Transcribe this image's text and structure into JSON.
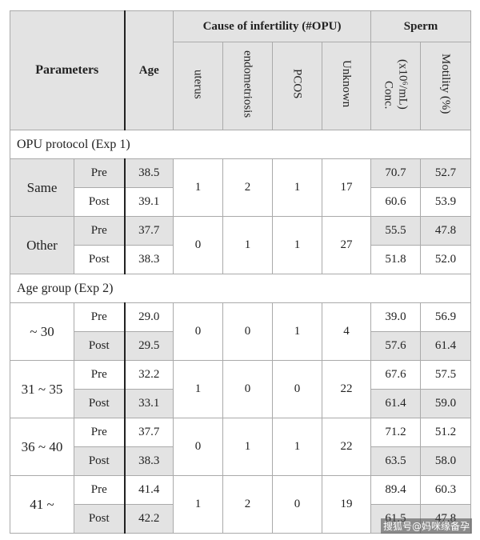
{
  "header": {
    "parameters": "Parameters",
    "age": "Age",
    "cause_group": "Cause of infertility (#OPU)",
    "sperm_group": "Sperm",
    "causes": [
      "uterus",
      "endometriosis",
      "PCOS",
      "Unknown"
    ],
    "conc": [
      "Conc.",
      "(x10⁶/mL)"
    ],
    "motility": "Motility (%)"
  },
  "sections": [
    {
      "title": "OPU protocol (Exp 1)",
      "groups": [
        {
          "label": "Same",
          "causes": [
            "1",
            "2",
            "1",
            "17"
          ],
          "rows": [
            {
              "phase": "Pre",
              "age": "38.5",
              "conc": "70.7",
              "motility": "52.7"
            },
            {
              "phase": "Post",
              "age": "39.1",
              "conc": "60.6",
              "motility": "53.9"
            }
          ]
        },
        {
          "label": "Other",
          "causes": [
            "0",
            "1",
            "1",
            "27"
          ],
          "rows": [
            {
              "phase": "Pre",
              "age": "37.7",
              "conc": "55.5",
              "motility": "47.8"
            },
            {
              "phase": "Post",
              "age": "38.3",
              "conc": "51.8",
              "motility": "52.0"
            }
          ]
        }
      ]
    },
    {
      "title": "Age group (Exp 2)",
      "groups": [
        {
          "label": "~ 30",
          "causes": [
            "0",
            "0",
            "1",
            "4"
          ],
          "rows": [
            {
              "phase": "Pre",
              "age": "29.0",
              "conc": "39.0",
              "motility": "56.9"
            },
            {
              "phase": "Post",
              "age": "29.5",
              "conc": "57.6",
              "motility": "61.4"
            }
          ]
        },
        {
          "label": "31 ~ 35",
          "causes": [
            "1",
            "0",
            "0",
            "22"
          ],
          "rows": [
            {
              "phase": "Pre",
              "age": "32.2",
              "conc": "67.6",
              "motility": "57.5"
            },
            {
              "phase": "Post",
              "age": "33.1",
              "conc": "61.4",
              "motility": "59.0"
            }
          ]
        },
        {
          "label": "36 ~ 40",
          "causes": [
            "0",
            "1",
            "1",
            "22"
          ],
          "rows": [
            {
              "phase": "Pre",
              "age": "37.7",
              "conc": "71.2",
              "motility": "51.2"
            },
            {
              "phase": "Post",
              "age": "38.3",
              "conc": "63.5",
              "motility": "58.0"
            }
          ]
        },
        {
          "label": "41 ~",
          "causes": [
            "1",
            "2",
            "0",
            "19"
          ],
          "rows": [
            {
              "phase": "Pre",
              "age": "41.4",
              "conc": "89.4",
              "motility": "60.3"
            },
            {
              "phase": "Post",
              "age": "42.2",
              "conc": "61.5",
              "motility": "47.8"
            }
          ]
        }
      ]
    }
  ],
  "watermark": "搜狐号@妈咪缘备孕"
}
